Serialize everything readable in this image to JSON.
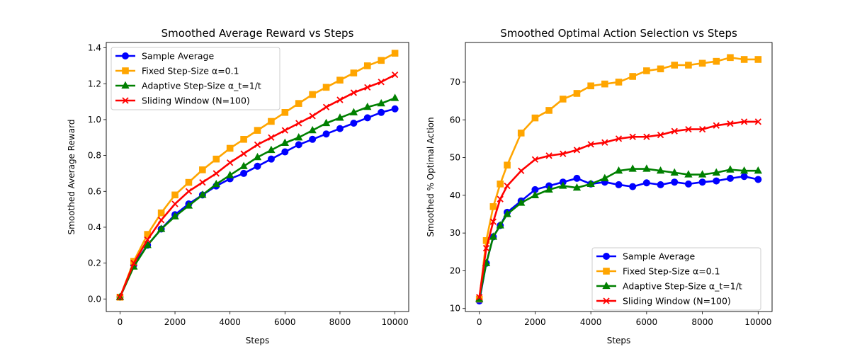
{
  "colors": {
    "sample_average": "#0000ff",
    "fixed_step": "#ffa500",
    "adaptive_step": "#008000",
    "sliding_window": "#ff0000"
  },
  "chart_data": [
    {
      "type": "line",
      "title": "Smoothed Average Reward vs Steps",
      "xlabel": "Steps",
      "ylabel": "Smoothed Average Reward",
      "xlim": [
        -500,
        10500
      ],
      "ylim": [
        -0.07,
        1.43
      ],
      "xticks": [
        0,
        2000,
        4000,
        6000,
        8000,
        10000
      ],
      "xtick_labels": [
        "0",
        "2000",
        "4000",
        "6000",
        "8000",
        "10000"
      ],
      "yticks": [
        0.0,
        0.2,
        0.4,
        0.6,
        0.8,
        1.0,
        1.2,
        1.4
      ],
      "ytick_labels": [
        "0.0",
        "0.2",
        "0.4",
        "0.6",
        "0.8",
        "1.0",
        "1.2",
        "1.4"
      ],
      "legend_position": "upper-left",
      "grid": false,
      "series": [
        {
          "name": "Sample Average",
          "color": "#0000ff",
          "marker": "circle",
          "x": [
            0,
            500,
            1000,
            1500,
            2000,
            2500,
            3000,
            3500,
            4000,
            4500,
            5000,
            5500,
            6000,
            6500,
            7000,
            7500,
            8000,
            8500,
            9000,
            9500,
            10000
          ],
          "y": [
            0.01,
            0.19,
            0.3,
            0.39,
            0.47,
            0.53,
            0.58,
            0.63,
            0.67,
            0.7,
            0.74,
            0.78,
            0.82,
            0.86,
            0.89,
            0.92,
            0.95,
            0.98,
            1.01,
            1.04,
            1.06
          ]
        },
        {
          "name": "Fixed Step-Size α=0.1",
          "color": "#ffa500",
          "marker": "square",
          "x": [
            0,
            500,
            1000,
            1500,
            2000,
            2500,
            3000,
            3500,
            4000,
            4500,
            5000,
            5500,
            6000,
            6500,
            7000,
            7500,
            8000,
            8500,
            9000,
            9500,
            10000
          ],
          "y": [
            0.01,
            0.21,
            0.36,
            0.48,
            0.58,
            0.65,
            0.72,
            0.78,
            0.84,
            0.89,
            0.94,
            0.99,
            1.04,
            1.09,
            1.14,
            1.18,
            1.22,
            1.26,
            1.3,
            1.33,
            1.37
          ]
        },
        {
          "name": "Adaptive Step-Size α_t=1/t",
          "color": "#008000",
          "marker": "triangle",
          "x": [
            0,
            500,
            1000,
            1500,
            2000,
            2500,
            3000,
            3500,
            4000,
            4500,
            5000,
            5500,
            6000,
            6500,
            7000,
            7500,
            8000,
            8500,
            9000,
            9500,
            10000
          ],
          "y": [
            0.01,
            0.18,
            0.3,
            0.39,
            0.46,
            0.52,
            0.58,
            0.64,
            0.69,
            0.74,
            0.79,
            0.83,
            0.87,
            0.9,
            0.94,
            0.98,
            1.01,
            1.04,
            1.07,
            1.09,
            1.12
          ]
        },
        {
          "name": "Sliding Window (N=100)",
          "color": "#ff0000",
          "marker": "x",
          "x": [
            0,
            500,
            1000,
            1500,
            2000,
            2500,
            3000,
            3500,
            4000,
            4500,
            5000,
            5500,
            6000,
            6500,
            7000,
            7500,
            8000,
            8500,
            9000,
            9500,
            10000
          ],
          "y": [
            0.01,
            0.2,
            0.33,
            0.44,
            0.53,
            0.6,
            0.65,
            0.7,
            0.76,
            0.81,
            0.86,
            0.9,
            0.94,
            0.98,
            1.02,
            1.07,
            1.11,
            1.15,
            1.18,
            1.21,
            1.25
          ]
        }
      ]
    },
    {
      "type": "line",
      "title": "Smoothed Optimal Action Selection vs Steps",
      "xlabel": "Steps",
      "ylabel": "Smoothed % Optimal Action",
      "xlim": [
        -500,
        10500
      ],
      "ylim": [
        9.2,
        80.5
      ],
      "xticks": [
        0,
        2000,
        4000,
        6000,
        8000,
        10000
      ],
      "xtick_labels": [
        "0",
        "2000",
        "4000",
        "6000",
        "8000",
        "10000"
      ],
      "yticks": [
        10,
        20,
        30,
        40,
        50,
        60,
        70
      ],
      "ytick_labels": [
        "10",
        "20",
        "30",
        "40",
        "50",
        "60",
        "70"
      ],
      "legend_position": "lower-right",
      "grid": false,
      "series": [
        {
          "name": "Sample Average",
          "color": "#0000ff",
          "marker": "circle",
          "x": [
            0,
            250,
            500,
            750,
            1000,
            1500,
            2000,
            2500,
            3000,
            3500,
            4000,
            4500,
            5000,
            5500,
            6000,
            6500,
            7000,
            7500,
            8000,
            8500,
            9000,
            9500,
            10000
          ],
          "y": [
            12,
            22,
            29,
            32,
            35.5,
            38.5,
            41.5,
            42.5,
            43.5,
            44.5,
            43.0,
            43.5,
            42.8,
            42.3,
            43.3,
            42.8,
            43.5,
            43.0,
            43.5,
            43.8,
            44.5,
            45.0,
            44.2
          ]
        },
        {
          "name": "Fixed Step-Size α=0.1",
          "color": "#ffa500",
          "marker": "square",
          "x": [
            0,
            250,
            500,
            750,
            1000,
            1500,
            2000,
            2500,
            3000,
            3500,
            4000,
            4500,
            5000,
            5500,
            6000,
            6500,
            7000,
            7500,
            8000,
            8500,
            9000,
            9500,
            10000
          ],
          "y": [
            12.5,
            28,
            37,
            43,
            48,
            56.5,
            60.5,
            62.5,
            65.5,
            67,
            69,
            69.5,
            70,
            71.5,
            73,
            73.5,
            74.5,
            74.5,
            75,
            75.5,
            76.5,
            76,
            76
          ]
        },
        {
          "name": "Adaptive Step-Size α_t=1/t",
          "color": "#008000",
          "marker": "triangle",
          "x": [
            0,
            250,
            500,
            750,
            1000,
            1500,
            2000,
            2500,
            3000,
            3500,
            4000,
            4500,
            5000,
            5500,
            6000,
            6500,
            7000,
            7500,
            8000,
            8500,
            9000,
            9500,
            10000
          ],
          "y": [
            12.5,
            22,
            29,
            32,
            35,
            38,
            40,
            41.5,
            42.5,
            42,
            43,
            44.5,
            46.5,
            47,
            47,
            46.5,
            46,
            45.5,
            45.5,
            46,
            46.8,
            46.5,
            46.5
          ]
        },
        {
          "name": "Sliding Window (N=100)",
          "color": "#ff0000",
          "marker": "x",
          "x": [
            0,
            250,
            500,
            750,
            1000,
            1500,
            2000,
            2500,
            3000,
            3500,
            4000,
            4500,
            5000,
            5500,
            6000,
            6500,
            7000,
            7500,
            8000,
            8500,
            9000,
            9500,
            10000
          ],
          "y": [
            13,
            26,
            33,
            39,
            42.5,
            46.5,
            49.5,
            50.5,
            51,
            52,
            53.5,
            54,
            55,
            55.5,
            55.5,
            56,
            57,
            57.5,
            57.5,
            58.5,
            59,
            59.5,
            59.5
          ]
        }
      ]
    }
  ]
}
